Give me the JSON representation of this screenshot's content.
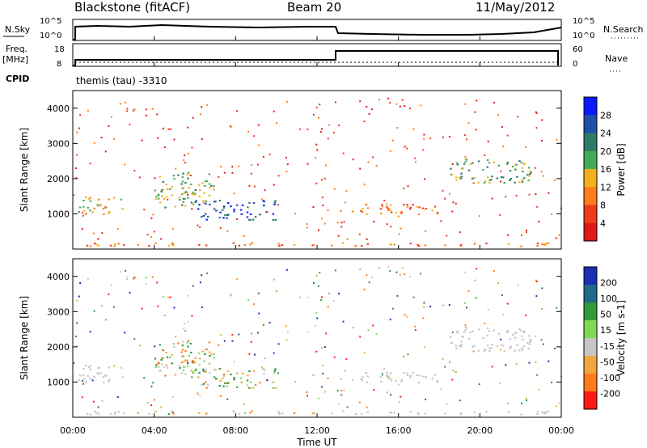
{
  "header": {
    "station": "Blackstone (fitACF)",
    "beam": "Beam 20",
    "date": "11/May/2012"
  },
  "sky_panel": {
    "left_label": "N.Sky",
    "right_label": "N.Search",
    "left_ticks": [
      "10^5",
      "10^0"
    ],
    "right_ticks": [
      "10^5",
      "10^0"
    ]
  },
  "freq_panel": {
    "left_label_line1": "Freq.",
    "left_label_line2": "[MHz]",
    "left_ticks": [
      "18",
      "8"
    ],
    "right_label": "Nave",
    "right_ticks": [
      "60",
      "0"
    ],
    "cpid_label": "CPID",
    "cpid_text": "themis (tau) -3310"
  },
  "colors": {
    "power": [
      "#0a1aff",
      "#1f4fa8",
      "#2f7a66",
      "#43ad55",
      "#f2b11c",
      "#ff7d1a",
      "#f03a1a",
      "#e01818"
    ],
    "velocity": [
      "#1a2fb4",
      "#1f6a8a",
      "#2e9a3a",
      "#7ed957",
      "#c6c6c6",
      "#f3a53d",
      "#ff7a1a",
      "#ff1a1a"
    ]
  },
  "chart_data": [
    {
      "type": "heatmap",
      "name": "power",
      "ylabel": "Slant Range [km]",
      "ylim": [
        0,
        4500
      ],
      "yticks": [
        "1000",
        "2000",
        "3000",
        "4000"
      ],
      "xlim": [
        0,
        24
      ],
      "colorbar_label": "Power [dB]",
      "colorbar_ticks": [
        "28",
        "24",
        "20",
        "16",
        "12",
        "8",
        "4"
      ],
      "structures": [
        {
          "t0": 0.2,
          "t1": 2.5,
          "r0": 1000,
          "r1": 1500,
          "level": 3
        },
        {
          "t0": 4.0,
          "t1": 7.0,
          "r0": 1200,
          "r1": 2200,
          "level": 4
        },
        {
          "t0": 6.0,
          "t1": 10.0,
          "r0": 850,
          "r1": 1400,
          "level": 6
        },
        {
          "t0": 13.0,
          "t1": 18.0,
          "r0": 1000,
          "r1": 1300,
          "level": 2
        },
        {
          "t0": 18.5,
          "t1": 22.5,
          "r0": 1900,
          "r1": 2600,
          "level": 4
        },
        {
          "t0": 0.5,
          "t1": 23.5,
          "r0": 100,
          "r1": 200,
          "level": 2
        }
      ]
    },
    {
      "type": "heatmap",
      "name": "velocity",
      "ylabel": "Slant Range [km]",
      "ylim": [
        0,
        4500
      ],
      "yticks": [
        "1000",
        "2000",
        "3000",
        "4000"
      ],
      "xlim": [
        0,
        24
      ],
      "xlabel": "Time UT",
      "xticks": [
        "00:00",
        "04:00",
        "08:00",
        "12:00",
        "16:00",
        "20:00",
        "00:00"
      ],
      "colorbar_label": "Velocity [m s-1]",
      "colorbar_ticks": [
        "200",
        "100",
        "50",
        "15",
        "-15",
        "-50",
        "-100",
        "-200"
      ]
    }
  ]
}
